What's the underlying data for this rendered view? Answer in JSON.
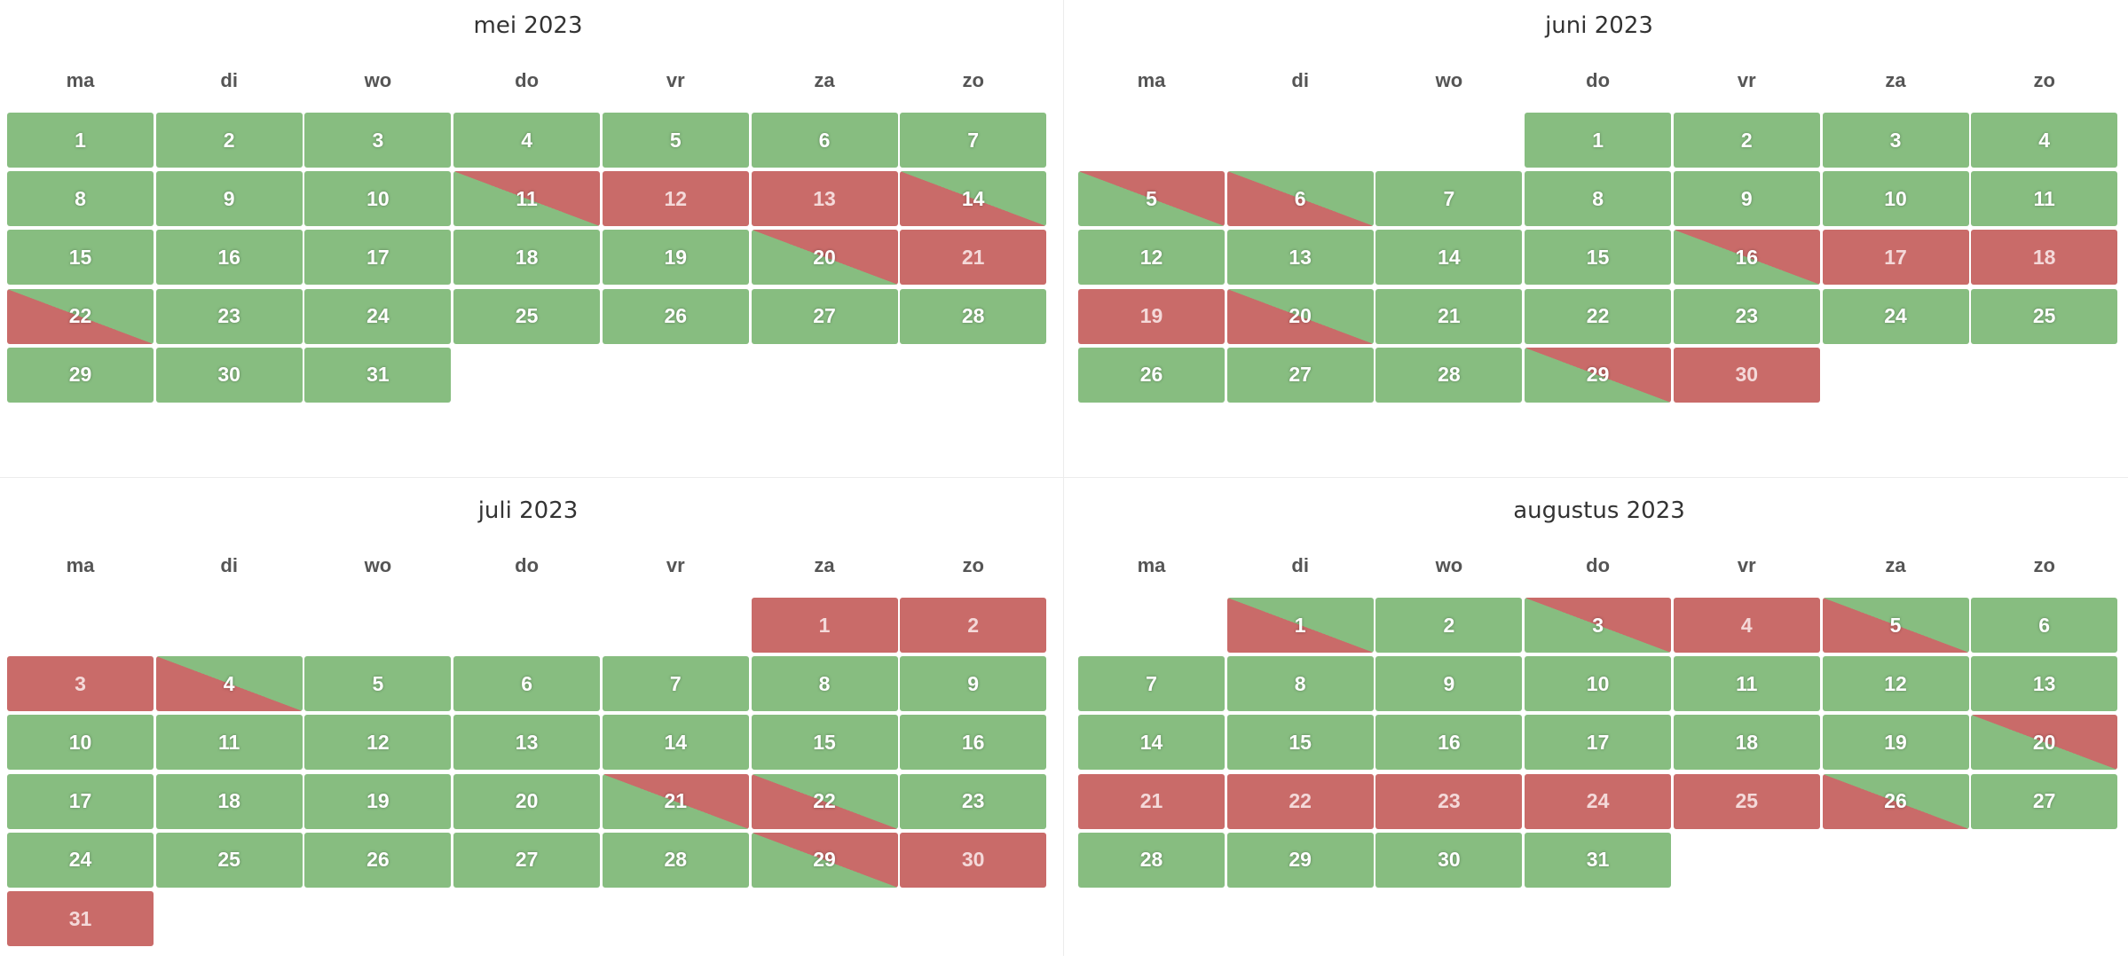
{
  "colors": {
    "free": "#87bd80",
    "busy": "#c96b69"
  },
  "weekdays": [
    "ma",
    "di",
    "wo",
    "do",
    "vr",
    "za",
    "zo"
  ],
  "months": [
    {
      "title": "mei 2023",
      "start_weekday": 0,
      "days": [
        {
          "n": "1",
          "s": "free"
        },
        {
          "n": "2",
          "s": "free"
        },
        {
          "n": "3",
          "s": "free"
        },
        {
          "n": "4",
          "s": "free"
        },
        {
          "n": "5",
          "s": "free"
        },
        {
          "n": "6",
          "s": "free"
        },
        {
          "n": "7",
          "s": "free"
        },
        {
          "n": "8",
          "s": "free"
        },
        {
          "n": "9",
          "s": "free"
        },
        {
          "n": "10",
          "s": "free"
        },
        {
          "n": "11",
          "s": "free-busy"
        },
        {
          "n": "12",
          "s": "busy"
        },
        {
          "n": "13",
          "s": "busy"
        },
        {
          "n": "14",
          "s": "busy-free"
        },
        {
          "n": "15",
          "s": "free"
        },
        {
          "n": "16",
          "s": "free"
        },
        {
          "n": "17",
          "s": "free"
        },
        {
          "n": "18",
          "s": "free"
        },
        {
          "n": "19",
          "s": "free"
        },
        {
          "n": "20",
          "s": "free-busy"
        },
        {
          "n": "21",
          "s": "busy"
        },
        {
          "n": "22",
          "s": "busy-free"
        },
        {
          "n": "23",
          "s": "free"
        },
        {
          "n": "24",
          "s": "free"
        },
        {
          "n": "25",
          "s": "free"
        },
        {
          "n": "26",
          "s": "free"
        },
        {
          "n": "27",
          "s": "free"
        },
        {
          "n": "28",
          "s": "free"
        },
        {
          "n": "29",
          "s": "free"
        },
        {
          "n": "30",
          "s": "free"
        },
        {
          "n": "31",
          "s": "free"
        }
      ]
    },
    {
      "title": "juni 2023",
      "start_weekday": 3,
      "days": [
        {
          "n": "1",
          "s": "free"
        },
        {
          "n": "2",
          "s": "free"
        },
        {
          "n": "3",
          "s": "free"
        },
        {
          "n": "4",
          "s": "free"
        },
        {
          "n": "5",
          "s": "free-busy"
        },
        {
          "n": "6",
          "s": "busy-free"
        },
        {
          "n": "7",
          "s": "free"
        },
        {
          "n": "8",
          "s": "free"
        },
        {
          "n": "9",
          "s": "free"
        },
        {
          "n": "10",
          "s": "free"
        },
        {
          "n": "11",
          "s": "free"
        },
        {
          "n": "12",
          "s": "free"
        },
        {
          "n": "13",
          "s": "free"
        },
        {
          "n": "14",
          "s": "free"
        },
        {
          "n": "15",
          "s": "free"
        },
        {
          "n": "16",
          "s": "free-busy"
        },
        {
          "n": "17",
          "s": "busy"
        },
        {
          "n": "18",
          "s": "busy"
        },
        {
          "n": "19",
          "s": "busy"
        },
        {
          "n": "20",
          "s": "busy-free"
        },
        {
          "n": "21",
          "s": "free"
        },
        {
          "n": "22",
          "s": "free"
        },
        {
          "n": "23",
          "s": "free"
        },
        {
          "n": "24",
          "s": "free"
        },
        {
          "n": "25",
          "s": "free"
        },
        {
          "n": "26",
          "s": "free"
        },
        {
          "n": "27",
          "s": "free"
        },
        {
          "n": "28",
          "s": "free"
        },
        {
          "n": "29",
          "s": "free-busy"
        },
        {
          "n": "30",
          "s": "busy"
        }
      ]
    },
    {
      "title": "juli 2023",
      "start_weekday": 5,
      "days": [
        {
          "n": "1",
          "s": "busy"
        },
        {
          "n": "2",
          "s": "busy"
        },
        {
          "n": "3",
          "s": "busy"
        },
        {
          "n": "4",
          "s": "busy-free"
        },
        {
          "n": "5",
          "s": "free"
        },
        {
          "n": "6",
          "s": "free"
        },
        {
          "n": "7",
          "s": "free"
        },
        {
          "n": "8",
          "s": "free"
        },
        {
          "n": "9",
          "s": "free"
        },
        {
          "n": "10",
          "s": "free"
        },
        {
          "n": "11",
          "s": "free"
        },
        {
          "n": "12",
          "s": "free"
        },
        {
          "n": "13",
          "s": "free"
        },
        {
          "n": "14",
          "s": "free"
        },
        {
          "n": "15",
          "s": "free"
        },
        {
          "n": "16",
          "s": "free"
        },
        {
          "n": "17",
          "s": "free"
        },
        {
          "n": "18",
          "s": "free"
        },
        {
          "n": "19",
          "s": "free"
        },
        {
          "n": "20",
          "s": "free"
        },
        {
          "n": "21",
          "s": "free-busy"
        },
        {
          "n": "22",
          "s": "busy-free"
        },
        {
          "n": "23",
          "s": "free"
        },
        {
          "n": "24",
          "s": "free"
        },
        {
          "n": "25",
          "s": "free"
        },
        {
          "n": "26",
          "s": "free"
        },
        {
          "n": "27",
          "s": "free"
        },
        {
          "n": "28",
          "s": "free"
        },
        {
          "n": "29",
          "s": "free-busy"
        },
        {
          "n": "30",
          "s": "busy"
        },
        {
          "n": "31",
          "s": "busy"
        }
      ]
    },
    {
      "title": "augustus 2023",
      "start_weekday": 1,
      "days": [
        {
          "n": "1",
          "s": "busy-free"
        },
        {
          "n": "2",
          "s": "free"
        },
        {
          "n": "3",
          "s": "free-busy"
        },
        {
          "n": "4",
          "s": "busy"
        },
        {
          "n": "5",
          "s": "busy-free"
        },
        {
          "n": "6",
          "s": "free"
        },
        {
          "n": "7",
          "s": "free"
        },
        {
          "n": "8",
          "s": "free"
        },
        {
          "n": "9",
          "s": "free"
        },
        {
          "n": "10",
          "s": "free"
        },
        {
          "n": "11",
          "s": "free"
        },
        {
          "n": "12",
          "s": "free"
        },
        {
          "n": "13",
          "s": "free"
        },
        {
          "n": "14",
          "s": "free"
        },
        {
          "n": "15",
          "s": "free"
        },
        {
          "n": "16",
          "s": "free"
        },
        {
          "n": "17",
          "s": "free"
        },
        {
          "n": "18",
          "s": "free"
        },
        {
          "n": "19",
          "s": "free"
        },
        {
          "n": "20",
          "s": "free-busy"
        },
        {
          "n": "21",
          "s": "busy"
        },
        {
          "n": "22",
          "s": "busy"
        },
        {
          "n": "23",
          "s": "busy"
        },
        {
          "n": "24",
          "s": "busy"
        },
        {
          "n": "25",
          "s": "busy"
        },
        {
          "n": "26",
          "s": "busy-free"
        },
        {
          "n": "27",
          "s": "free"
        },
        {
          "n": "28",
          "s": "free"
        },
        {
          "n": "29",
          "s": "free"
        },
        {
          "n": "30",
          "s": "free"
        },
        {
          "n": "31",
          "s": "free"
        }
      ]
    }
  ]
}
